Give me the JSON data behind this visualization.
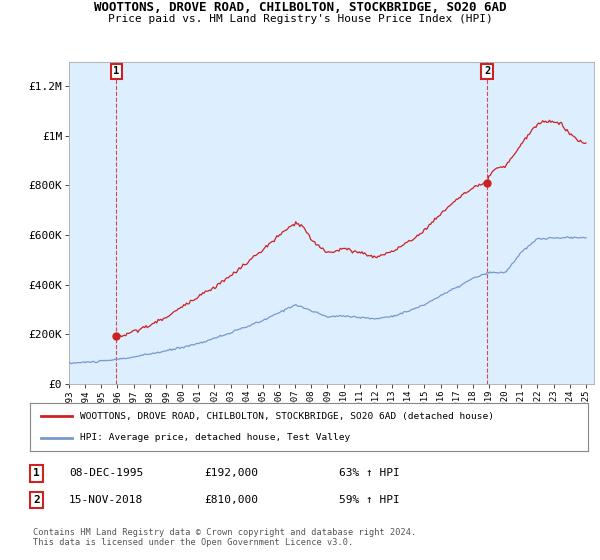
{
  "title": "WOOTTONS, DROVE ROAD, CHILBOLTON, STOCKBRIDGE, SO20 6AD",
  "subtitle": "Price paid vs. HM Land Registry's House Price Index (HPI)",
  "ylim": [
    0,
    1300000
  ],
  "yticks": [
    0,
    200000,
    400000,
    600000,
    800000,
    1000000,
    1200000
  ],
  "ytick_labels": [
    "£0",
    "£200K",
    "£400K",
    "£600K",
    "£800K",
    "£1M",
    "£1.2M"
  ],
  "point1": {
    "date_num": 1995.93,
    "value": 192000,
    "label": "1",
    "date_str": "08-DEC-1995",
    "price": "£192,000",
    "pct": "63% ↑ HPI"
  },
  "point2": {
    "date_num": 2018.88,
    "value": 810000,
    "label": "2",
    "date_str": "15-NOV-2018",
    "price": "£810,000",
    "pct": "59% ↑ HPI"
  },
  "legend_line1": "WOOTTONS, DROVE ROAD, CHILBOLTON, STOCKBRIDGE, SO20 6AD (detached house)",
  "legend_line2": "HPI: Average price, detached house, Test Valley",
  "footer": "Contains HM Land Registry data © Crown copyright and database right 2024.\nThis data is licensed under the Open Government Licence v3.0.",
  "red_color": "#cc2222",
  "blue_color": "#7799cc",
  "plot_bg": "#ddeeff",
  "hatch_bg": "#e8e8e8",
  "hatch_color": "#bbbbbb",
  "grid_color": "#ffffff",
  "xmin": 1993.0,
  "xmax": 2025.5,
  "xticks": [
    1993,
    1994,
    1995,
    1996,
    1997,
    1998,
    1999,
    2000,
    2001,
    2002,
    2003,
    2004,
    2005,
    2006,
    2007,
    2008,
    2009,
    2010,
    2011,
    2012,
    2013,
    2014,
    2015,
    2016,
    2017,
    2018,
    2019,
    2020,
    2021,
    2022,
    2023,
    2024,
    2025
  ]
}
